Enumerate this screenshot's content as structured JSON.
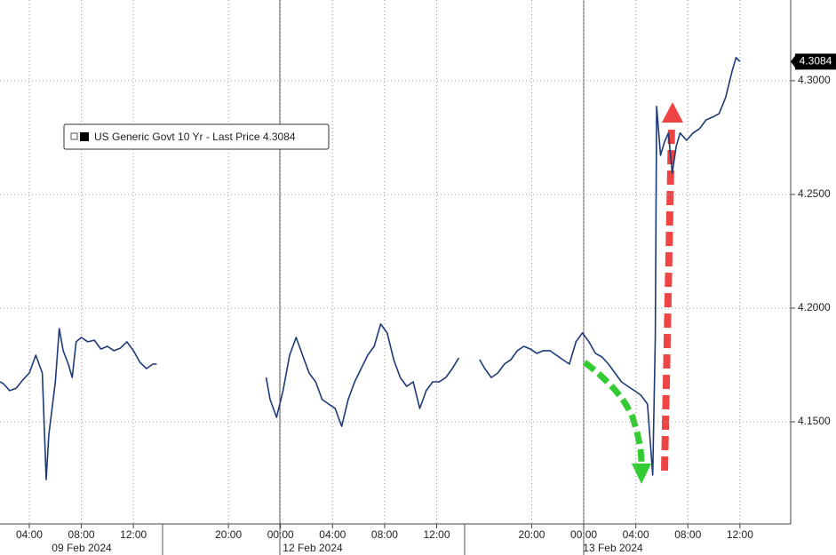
{
  "chart_data": {
    "type": "line",
    "x": [
      1.75,
      2.0,
      2.5,
      3.0,
      3.5,
      4.0,
      4.5,
      5.0,
      5.3,
      5.5,
      6.0,
      6.3,
      6.6,
      7.0,
      7.3,
      7.6,
      8.0,
      8.5,
      9.0,
      9.5,
      10.0,
      10.5,
      11.0,
      11.5,
      12.0,
      12.5,
      13.0,
      13.5,
      13.8,
      18.0,
      22.2,
      22.5,
      23.0,
      23.5,
      24.0,
      24.5,
      25.0,
      25.5,
      26.0,
      26.5,
      27.0,
      27.5,
      28.0,
      28.5,
      29.0,
      29.5,
      30.0,
      30.5,
      31.0,
      31.5,
      32.0,
      32.5,
      33.0,
      33.5,
      34.0,
      34.5,
      35.0,
      35.5,
      36.0,
      36.5,
      37.0,
      37.8,
      38.6,
      39.0,
      39.5,
      40.0,
      40.5,
      41.0,
      41.5,
      42.0,
      42.5,
      43.0,
      43.5,
      44.0,
      44.5,
      45.0,
      45.5,
      46.0,
      46.5,
      47.0,
      47.5,
      48.0,
      48.5,
      49.0,
      49.5,
      50.0,
      50.5,
      51.0,
      51.5,
      51.9,
      52.1,
      52.2,
      52.5,
      52.8,
      53.1,
      53.4,
      53.7,
      54.0,
      54.5,
      55.0,
      55.5,
      56.0,
      56.5,
      57.0,
      57.5,
      58.0,
      58.3,
      58.6
    ],
    "series": [
      {
        "name": "US Generic Govt 10 Yr - Last Price",
        "color": "#1d3a78",
        "values": [
          4.1676,
          4.1668,
          4.1637,
          4.1648,
          4.1684,
          4.1715,
          4.1793,
          4.1715,
          4.1246,
          4.1441,
          4.1676,
          4.191,
          4.1813,
          4.1754,
          4.1695,
          4.1852,
          4.1871,
          4.1852,
          4.1859,
          4.182,
          4.1832,
          4.1813,
          4.1824,
          4.1852,
          4.1813,
          4.1762,
          4.1734,
          4.1754,
          4.1754,
          null,
          4.1695,
          4.1598,
          4.152,
          4.1637,
          4.1793,
          4.1871,
          4.1793,
          4.1715,
          4.1676,
          4.1598,
          4.1578,
          4.1559,
          4.148,
          4.1598,
          4.1676,
          4.1734,
          4.1793,
          4.1832,
          4.193,
          4.1891,
          4.1773,
          4.1695,
          4.1656,
          4.1676,
          4.1559,
          4.1637,
          4.1676,
          4.1676,
          4.1695,
          4.1734,
          4.1781,
          null,
          4.1773,
          4.1734,
          4.1695,
          4.1715,
          4.1754,
          4.1773,
          4.1813,
          4.1832,
          4.182,
          4.1801,
          4.1813,
          4.1813,
          4.1793,
          4.1773,
          4.1754,
          4.1852,
          4.1891,
          4.1852,
          4.1801,
          4.1785,
          4.1754,
          4.1715,
          4.1676,
          4.1656,
          4.1637,
          4.1617,
          4.1578,
          4.1266,
          4.1871,
          4.2887,
          4.2672,
          4.273,
          4.277,
          4.2594,
          4.2711,
          4.277,
          4.2738,
          4.277,
          4.2789,
          4.2828,
          4.284,
          4.2855,
          4.2926,
          4.3043,
          4.3102,
          4.3084
        ]
      }
    ],
    "last_price": 4.3084,
    "xlim": [
      1.75,
      62.5
    ],
    "xticks": [
      {
        "value": 4,
        "label": "04:00"
      },
      {
        "value": 8,
        "label": "08:00"
      },
      {
        "value": 12,
        "label": "12:00"
      },
      {
        "value": 19.3,
        "label": "20:00"
      },
      {
        "value": 23.3,
        "label": "00:00"
      },
      {
        "value": 27.3,
        "label": "04:00"
      },
      {
        "value": 31.3,
        "label": "08:00"
      },
      {
        "value": 35.3,
        "label": "12:00"
      },
      {
        "value": 42.6,
        "label": "20:00"
      },
      {
        "value": 46.6,
        "label": "00:00"
      },
      {
        "value": 50.6,
        "label": "04:00"
      },
      {
        "value": 54.6,
        "label": "08:00"
      },
      {
        "value": 58.6,
        "label": "12:00"
      }
    ],
    "date_labels": [
      "09 Feb 2024",
      "12 Feb 2024",
      "13 Feb 2024"
    ],
    "ylim": [
      4.1051,
      4.3355
    ],
    "yticks": [
      {
        "value": 4.15,
        "label": "4.1500"
      },
      {
        "value": 4.2,
        "label": "4.2000"
      },
      {
        "value": 4.25,
        "label": "4.2500"
      },
      {
        "value": 4.3,
        "label": "4.3000"
      }
    ],
    "grid": true
  }
}
